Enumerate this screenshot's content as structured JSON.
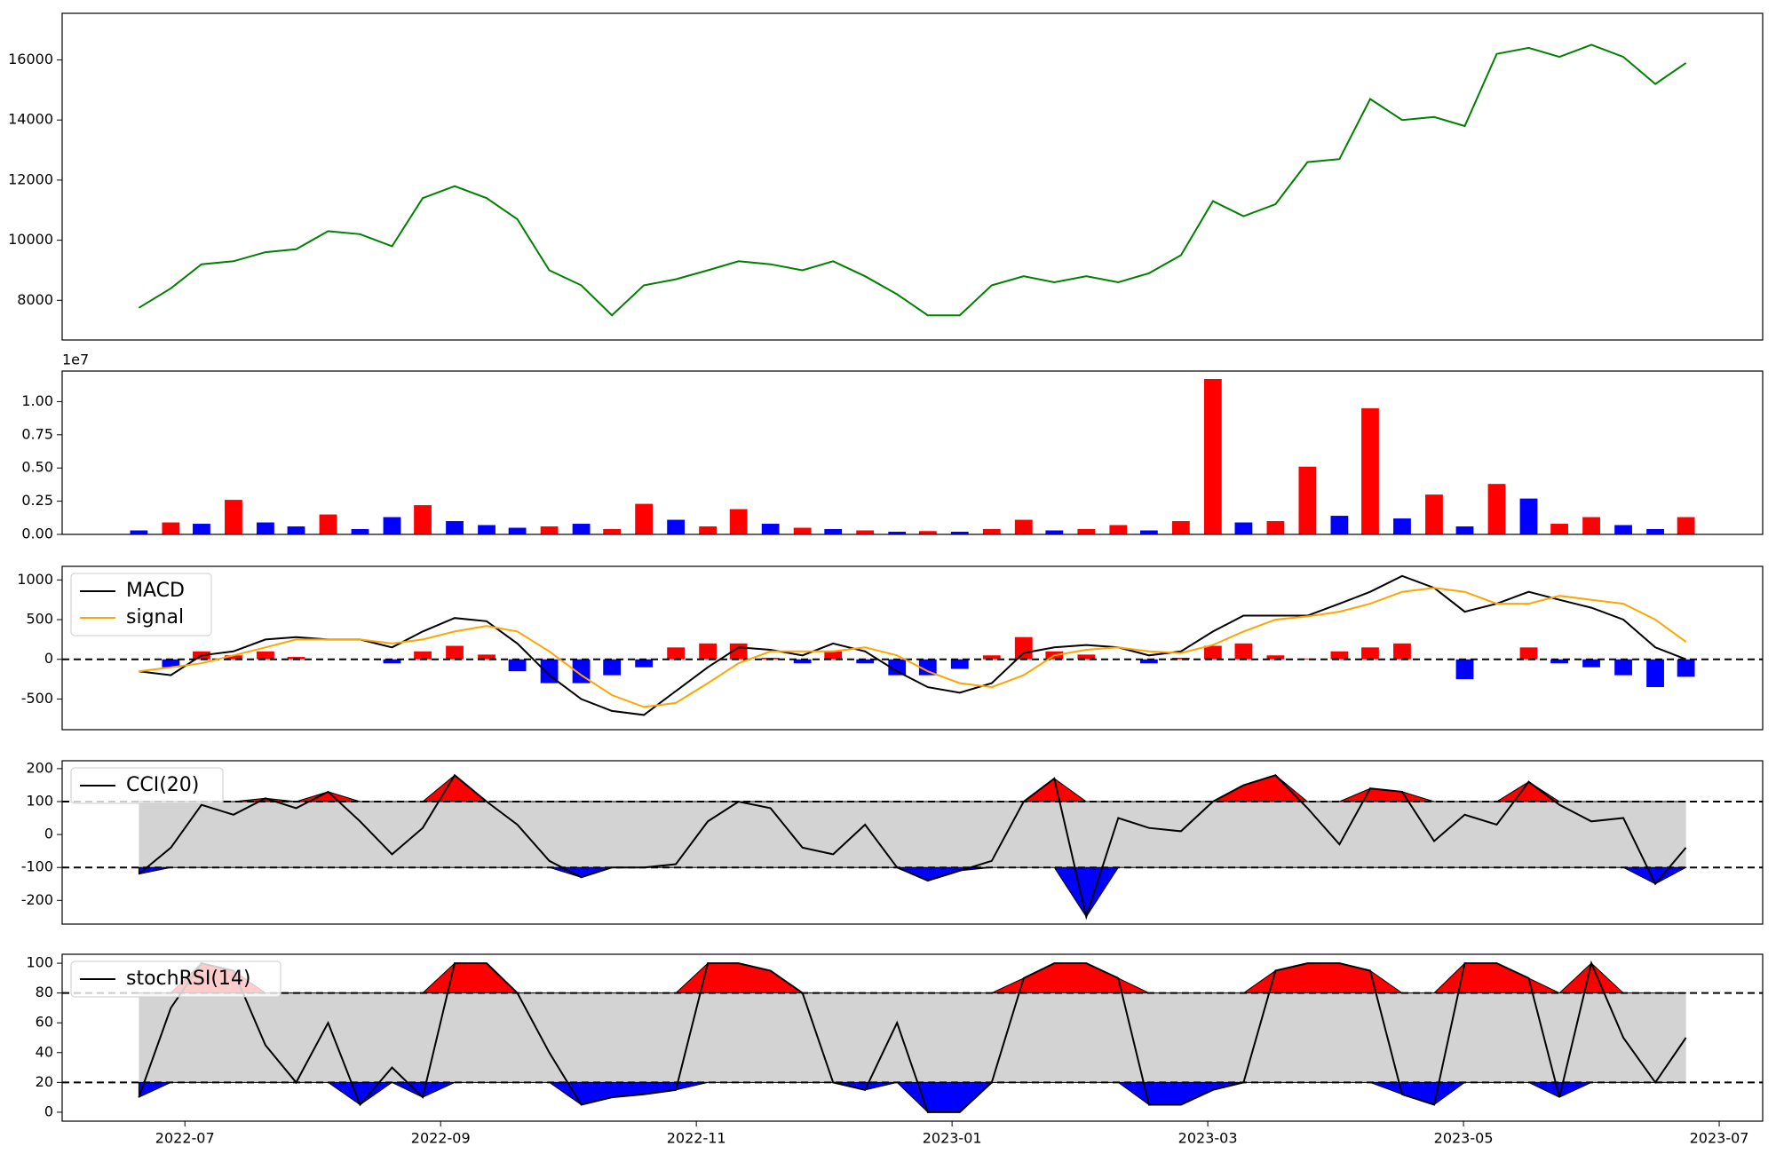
{
  "chart_data": [
    {
      "type": "line",
      "x": [
        6.64,
        6.89,
        7.13,
        7.38,
        7.63,
        7.87,
        8.12,
        8.37,
        8.62,
        8.86,
        9.11,
        9.36,
        9.6,
        9.85,
        10.1,
        10.34,
        10.59,
        10.84,
        11.09,
        11.33,
        11.58,
        11.83,
        12.07,
        12.32,
        12.57,
        12.81,
        13.06,
        13.31,
        13.56,
        13.8,
        14.05,
        14.3,
        14.54,
        14.79,
        15.04,
        15.28,
        15.53,
        15.78,
        16.03,
        16.27,
        16.52,
        16.77,
        17.01,
        17.26,
        17.51,
        17.75,
        18.0,
        18.25,
        18.5,
        18.74
      ],
      "series": [
        {
          "color": "#008000",
          "values": [
            7750,
            8400,
            9200,
            9300,
            9600,
            9700,
            10300,
            10200,
            9800,
            11400,
            11800,
            11400,
            10700,
            9000,
            8500,
            7500,
            8500,
            8700,
            9000,
            9300,
            9200,
            9000,
            9300,
            8800,
            8200,
            7500,
            7500,
            8500,
            8800,
            8600,
            8800,
            8600,
            8900,
            9500,
            11300,
            10800,
            11200,
            12600,
            12700,
            14700,
            14000,
            14100,
            13800,
            16200,
            16400,
            16100,
            16500,
            16100,
            15200,
            15900
          ]
        }
      ],
      "ylim": [
        6680,
        17550
      ],
      "yticks": [
        8000,
        10000,
        12000,
        14000,
        16000
      ]
    },
    {
      "type": "bar",
      "offset_label": "1e7",
      "values": [
        300000,
        900000,
        800000,
        2600000,
        900000,
        600000,
        1500000,
        400000,
        1300000,
        2200000,
        1000000,
        700000,
        500000,
        600000,
        800000,
        400000,
        2300000,
        1100000,
        600000,
        1900000,
        800000,
        500000,
        400000,
        300000,
        200000,
        250000,
        200000,
        400000,
        1100000,
        300000,
        400000,
        700000,
        300000,
        1000000,
        11700000,
        900000,
        1000000,
        5100000,
        1400000,
        9500000,
        1200000,
        3000000,
        600000,
        3800000,
        2700000,
        800000,
        1300000,
        700000,
        400000,
        1300000
      ],
      "colors": [
        "#0000ff",
        "#ff0000",
        "#0000ff",
        "#ff0000",
        "#0000ff",
        "#0000ff",
        "#ff0000",
        "#0000ff",
        "#0000ff",
        "#ff0000",
        "#0000ff",
        "#0000ff",
        "#0000ff",
        "#ff0000",
        "#0000ff",
        "#ff0000",
        "#ff0000",
        "#0000ff",
        "#ff0000",
        "#ff0000",
        "#0000ff",
        "#ff0000",
        "#0000ff",
        "#ff0000",
        "#0000ff",
        "#ff0000",
        "#0000ff",
        "#ff0000",
        "#ff0000",
        "#0000ff",
        "#ff0000",
        "#ff0000",
        "#0000ff",
        "#ff0000",
        "#ff0000",
        "#0000ff",
        "#ff0000",
        "#ff0000",
        "#0000ff",
        "#ff0000",
        "#0000ff",
        "#ff0000",
        "#0000ff",
        "#ff0000",
        "#0000ff",
        "#ff0000",
        "#ff0000",
        "#0000ff",
        "#0000ff",
        "#ff0000"
      ],
      "ylim": [
        0,
        12300000
      ],
      "yticks": [
        {
          "value": 0,
          "label": "0.00"
        },
        {
          "value": 2500000,
          "label": "0.25"
        },
        {
          "value": 5000000,
          "label": "0.50"
        },
        {
          "value": 7500000,
          "label": "0.75"
        },
        {
          "value": 10000000,
          "label": "1.00"
        }
      ]
    },
    {
      "type": "macd",
      "legend": "upper left",
      "series": [
        {
          "name": "MACD",
          "color": "#000000",
          "values": [
            -150,
            -200,
            50,
            100,
            250,
            280,
            250,
            250,
            150,
            350,
            520,
            480,
            200,
            -200,
            -500,
            -650,
            -700,
            -400,
            -100,
            150,
            120,
            50,
            200,
            100,
            -150,
            -350,
            -420,
            -300,
            80,
            150,
            180,
            150,
            50,
            100,
            350,
            550,
            550,
            550,
            700,
            850,
            1050,
            900,
            600,
            700,
            850,
            750,
            650,
            500,
            150,
            0
          ]
        },
        {
          "name": "signal",
          "color": "#ffa500",
          "values": [
            -150,
            -100,
            -50,
            50,
            150,
            250,
            250,
            250,
            200,
            250,
            350,
            420,
            350,
            100,
            -200,
            -450,
            -600,
            -550,
            -300,
            -50,
            100,
            100,
            100,
            150,
            50,
            -150,
            -300,
            -350,
            -200,
            50,
            120,
            150,
            100,
            80,
            180,
            350,
            500,
            540,
            600,
            700,
            850,
            900,
            850,
            700,
            700,
            800,
            750,
            700,
            500,
            220
          ]
        }
      ],
      "histogram": {
        "positive_color": "#ff0000",
        "negative_color": "#0000ff",
        "values": [
          0,
          -100,
          100,
          50,
          100,
          30,
          0,
          0,
          -50,
          100,
          170,
          60,
          -150,
          -300,
          -300,
          -200,
          -100,
          150,
          200,
          200,
          20,
          -50,
          100,
          -50,
          -200,
          -200,
          -120,
          50,
          280,
          100,
          60,
          0,
          -50,
          20,
          170,
          200,
          50,
          10,
          100,
          150,
          200,
          0,
          -250,
          0,
          150,
          -50,
          -100,
          -200,
          -350,
          -220
        ]
      },
      "hlines": [
        0
      ],
      "ylim": [
        -886,
        1171
      ],
      "yticks": [
        -500,
        0,
        500,
        1000
      ]
    },
    {
      "type": "oscillator",
      "legend": "upper left",
      "series": [
        {
          "name": "CCI(20)",
          "color": "#000000",
          "values": [
            -120,
            -40,
            90,
            60,
            110,
            80,
            130,
            40,
            -60,
            20,
            180,
            100,
            30,
            -80,
            -130,
            -100,
            -100,
            -90,
            40,
            100,
            80,
            -40,
            -60,
            30,
            -100,
            -140,
            -110,
            -80,
            100,
            170,
            -250,
            50,
            20,
            10,
            100,
            150,
            180,
            80,
            -30,
            140,
            130,
            -20,
            60,
            30,
            160,
            90,
            40,
            50,
            -150,
            -40
          ]
        }
      ],
      "thresholds": [
        -100,
        100
      ],
      "band_color": "#d3d3d3",
      "above_color": "#ff0000",
      "below_color": "#0000ff",
      "ylim": [
        -272,
        224
      ],
      "yticks": [
        -200,
        -100,
        0,
        100,
        200
      ]
    },
    {
      "type": "oscillator",
      "legend": "upper left",
      "series": [
        {
          "name": "stochRSI(14)",
          "color": "#000000",
          "values": [
            10,
            70,
            100,
            95,
            45,
            20,
            60,
            5,
            30,
            10,
            100,
            100,
            80,
            40,
            5,
            10,
            12,
            15,
            100,
            100,
            95,
            80,
            20,
            15,
            60,
            0,
            0,
            20,
            90,
            100,
            100,
            90,
            5,
            5,
            15,
            20,
            95,
            100,
            100,
            95,
            12,
            5,
            100,
            100,
            90,
            10,
            100,
            50,
            20,
            50
          ]
        }
      ],
      "thresholds": [
        20,
        80
      ],
      "band_color": "#d3d3d3",
      "above_color": "#ff0000",
      "below_color": "#0000ff",
      "ylim": [
        -6,
        106
      ],
      "yticks": [
        0,
        20,
        40,
        60,
        80,
        100
      ],
      "xlim": [
        6.04,
        19.34
      ],
      "xticks": [
        {
          "value": 7,
          "label": "2022-07"
        },
        {
          "value": 9,
          "label": "2022-09"
        },
        {
          "value": 11,
          "label": "2022-11"
        },
        {
          "value": 13,
          "label": "2023-01"
        },
        {
          "value": 15,
          "label": "2023-03"
        },
        {
          "value": 17,
          "label": "2023-05"
        },
        {
          "value": 19,
          "label": "2023-07"
        }
      ]
    }
  ]
}
